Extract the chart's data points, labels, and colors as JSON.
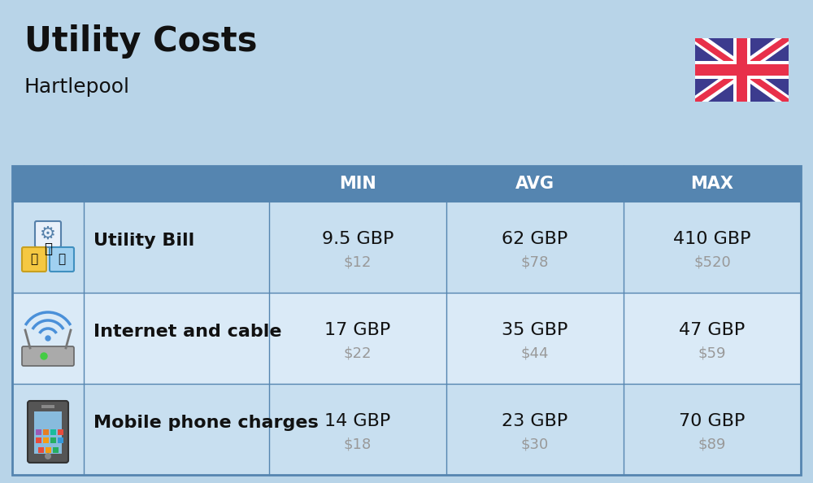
{
  "title": "Utility Costs",
  "subtitle": "Hartlepool",
  "background_color": "#b8d4e8",
  "header_bg_color": "#5585b0",
  "header_text_color": "#ffffff",
  "row_bg_color_odd": "#c8dff0",
  "row_bg_color_even": "#daeaf7",
  "divider_color": "#5585b0",
  "col_headers": [
    "MIN",
    "AVG",
    "MAX"
  ],
  "rows": [
    {
      "label": "Utility Bill",
      "icon": "utility",
      "min_gbp": "9.5 GBP",
      "min_usd": "$12",
      "avg_gbp": "62 GBP",
      "avg_usd": "$78",
      "max_gbp": "410 GBP",
      "max_usd": "$520"
    },
    {
      "label": "Internet and cable",
      "icon": "internet",
      "min_gbp": "17 GBP",
      "min_usd": "$22",
      "avg_gbp": "35 GBP",
      "avg_usd": "$44",
      "max_gbp": "47 GBP",
      "max_usd": "$59"
    },
    {
      "label": "Mobile phone charges",
      "icon": "mobile",
      "min_gbp": "14 GBP",
      "min_usd": "$18",
      "avg_gbp": "23 GBP",
      "avg_usd": "$30",
      "max_gbp": "70 GBP",
      "max_usd": "$89"
    }
  ],
  "gbp_fontsize": 16,
  "usd_fontsize": 13,
  "label_fontsize": 16,
  "header_fontsize": 15,
  "title_fontsize": 30,
  "subtitle_fontsize": 18,
  "usd_color": "#999999",
  "text_color": "#111111",
  "flag_blue": "#3c3b8e",
  "flag_red": "#e8304a",
  "flag_white": "#ffffff"
}
